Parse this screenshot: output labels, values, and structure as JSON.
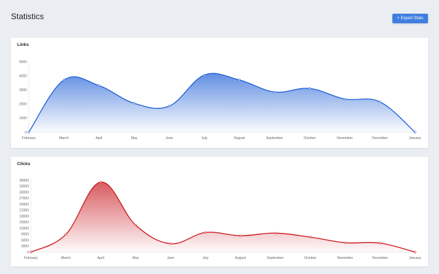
{
  "header": {
    "title": "Statistics",
    "export_icon": "+",
    "export_label": "Export Stats"
  },
  "colors": {
    "accent": "#3f7fe0",
    "links_line": "#1f5fd6",
    "clicks_line": "#c8161d"
  },
  "chart_data": [
    {
      "type": "area",
      "title": "Links",
      "categories": [
        "February",
        "March",
        "April",
        "May",
        "June",
        "July",
        "August",
        "September",
        "October",
        "November",
        "December",
        "January"
      ],
      "values": [
        0,
        3700,
        3300,
        2050,
        1850,
        4050,
        3700,
        2850,
        3100,
        2350,
        2150,
        0
      ],
      "y_ticks": [
        0,
        1000,
        2000,
        3000,
        4000,
        5000
      ],
      "ylim": [
        0,
        5000
      ],
      "series_name": "Links"
    },
    {
      "type": "area",
      "title": "Clicks",
      "categories": [
        "February",
        "March",
        "April",
        "May",
        "June",
        "July",
        "August",
        "September",
        "October",
        "November",
        "December",
        "January"
      ],
      "values": [
        0,
        8800,
        35000,
        13500,
        4200,
        9800,
        8200,
        9500,
        7500,
        4700,
        4500,
        0
      ],
      "y_ticks": [
        0,
        3000,
        6000,
        9000,
        12000,
        15000,
        18000,
        21000,
        24000,
        27000,
        30000,
        33000,
        36000
      ],
      "ylim": [
        0,
        36000
      ],
      "series_name": "Clicks"
    }
  ]
}
